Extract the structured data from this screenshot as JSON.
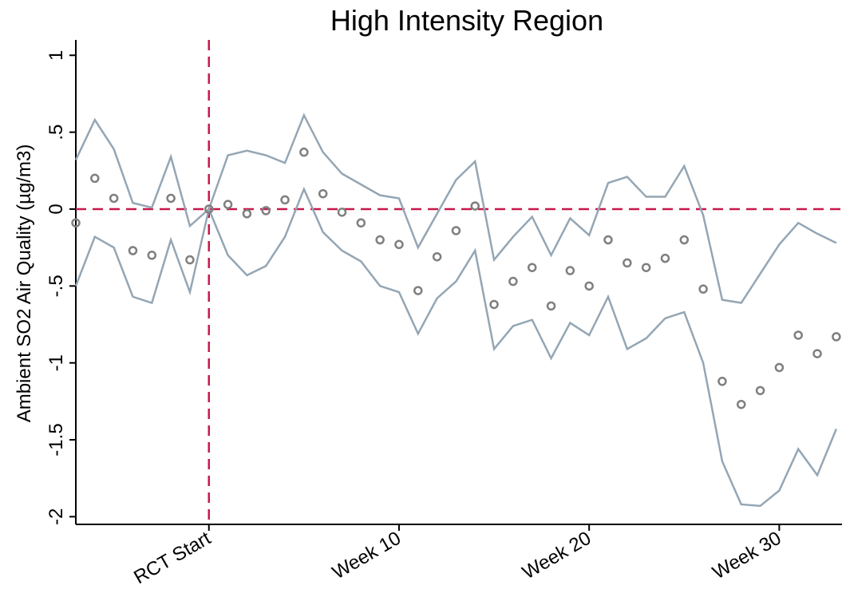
{
  "chart_data": {
    "type": "scatter",
    "title": "High Intensity Region",
    "ylabel": "Ambient SO2 Air Quality (µg/m3)",
    "xlabel": "",
    "xlim": [
      -7,
      33.3
    ],
    "ylim": [
      -2.05,
      1.1
    ],
    "yticks": [
      {
        "value": 1,
        "label": "1"
      },
      {
        "value": 0.5,
        "label": ".5"
      },
      {
        "value": 0,
        "label": "0"
      },
      {
        "value": -0.5,
        "label": "-.5"
      },
      {
        "value": -1,
        "label": "-1"
      },
      {
        "value": -1.5,
        "label": "-1.5"
      },
      {
        "value": -2,
        "label": "-2"
      }
    ],
    "xticks": [
      {
        "value": 0,
        "label": "RCT Start"
      },
      {
        "value": 10,
        "label": "Week 10"
      },
      {
        "value": 20,
        "label": "Week 20"
      },
      {
        "value": 30,
        "label": "Week 30"
      }
    ],
    "reference_lines": {
      "x": 0,
      "y": 0,
      "color": "#c8194b",
      "style": "dashed"
    },
    "colors": {
      "ci": "#94a6b4",
      "points": "#7f7f7f"
    },
    "x": [
      -7,
      -6,
      -5,
      -4,
      -3,
      -2,
      -1,
      0,
      1,
      2,
      3,
      4,
      5,
      6,
      7,
      8,
      9,
      10,
      11,
      12,
      13,
      14,
      15,
      16,
      17,
      18,
      19,
      20,
      21,
      22,
      23,
      24,
      25,
      26,
      27,
      28,
      29,
      30,
      31,
      32,
      33
    ],
    "series": [
      {
        "role": "estimate",
        "marker": "hollow-circle",
        "values": [
          -0.09,
          0.2,
          0.07,
          -0.27,
          -0.3,
          0.07,
          -0.33,
          0,
          0.03,
          -0.03,
          -0.01,
          0.06,
          0.37,
          0.1,
          -0.02,
          -0.09,
          -0.2,
          -0.23,
          -0.53,
          -0.31,
          -0.14,
          0.02,
          -0.62,
          -0.47,
          -0.38,
          -0.63,
          -0.4,
          -0.5,
          -0.2,
          -0.35,
          -0.38,
          -0.32,
          -0.2,
          -0.52,
          -1.12,
          -1.27,
          -1.18,
          -1.03,
          -0.82,
          -0.94,
          -0.83
        ]
      },
      {
        "role": "upper-ci",
        "marker": "line",
        "values": [
          0.32,
          0.58,
          0.39,
          0.04,
          0.01,
          0.34,
          -0.11,
          0,
          0.35,
          0.38,
          0.35,
          0.3,
          0.61,
          0.37,
          0.23,
          0.16,
          0.09,
          0.07,
          -0.25,
          -0.03,
          0.19,
          0.31,
          -0.33,
          -0.18,
          -0.05,
          -0.3,
          -0.06,
          -0.17,
          0.17,
          0.21,
          0.08,
          0.08,
          0.28,
          -0.04,
          -0.59,
          -0.61,
          -0.42,
          -0.23,
          -0.09,
          -0.16,
          -0.22
        ]
      },
      {
        "role": "lower-ci",
        "marker": "line",
        "values": [
          -0.5,
          -0.18,
          -0.25,
          -0.57,
          -0.61,
          -0.2,
          -0.54,
          0,
          -0.3,
          -0.43,
          -0.37,
          -0.18,
          0.13,
          -0.15,
          -0.27,
          -0.34,
          -0.5,
          -0.54,
          -0.81,
          -0.58,
          -0.47,
          -0.27,
          -0.91,
          -0.76,
          -0.72,
          -0.97,
          -0.74,
          -0.82,
          -0.57,
          -0.91,
          -0.84,
          -0.71,
          -0.67,
          -1,
          -1.64,
          -1.92,
          -1.93,
          -1.83,
          -1.56,
          -1.73,
          -1.43
        ]
      }
    ]
  }
}
